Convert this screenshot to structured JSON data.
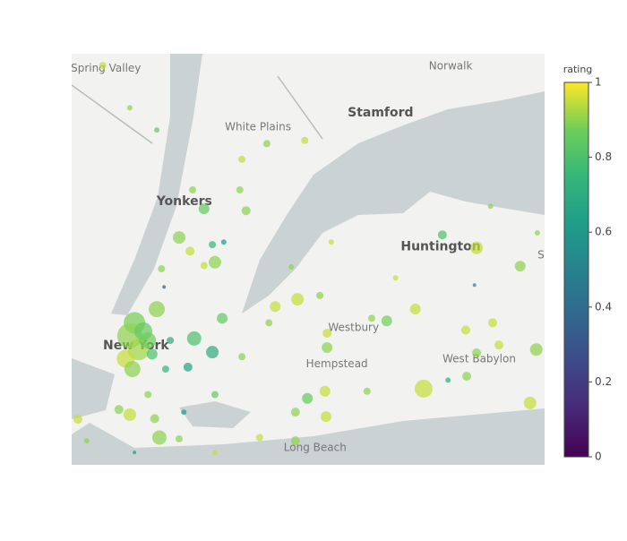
{
  "chart_data": {
    "type": "scatter_map",
    "lonlim": [
      -74.12,
      -73.209
    ],
    "latlim": [
      40.526,
      41.157
    ],
    "colorscale": "Viridis",
    "clim": [
      0,
      1
    ],
    "colorbar_title": "rating",
    "cticks": [
      0,
      0.2,
      0.4,
      0.6,
      0.8,
      1
    ],
    "opacity": 0.7,
    "map_labels": [
      {
        "text": "Spring Valley",
        "lon": -74.054,
        "lat": 41.134,
        "weight": "normal"
      },
      {
        "text": "Norwalk",
        "lon": -73.39,
        "lat": 41.138,
        "weight": "normal"
      },
      {
        "text": "White Plains",
        "lon": -73.761,
        "lat": 41.044,
        "weight": "normal"
      },
      {
        "text": "Stamford",
        "lon": -73.525,
        "lat": 41.066,
        "weight": "bold"
      },
      {
        "text": "Yonkers",
        "lon": -73.903,
        "lat": 40.93,
        "weight": "bold"
      },
      {
        "text": "Huntington",
        "lon": -73.409,
        "lat": 40.861,
        "weight": "bold"
      },
      {
        "text": "Westbury",
        "lon": -73.577,
        "lat": 40.736,
        "weight": "normal"
      },
      {
        "text": "New York",
        "lon": -73.996,
        "lat": 40.709,
        "weight": "bold"
      },
      {
        "text": "Hempstead",
        "lon": -73.609,
        "lat": 40.681,
        "weight": "normal"
      },
      {
        "text": "West Babylon",
        "lon": -73.335,
        "lat": 40.688,
        "weight": "normal"
      },
      {
        "text": "Long Beach",
        "lon": -73.651,
        "lat": 40.552,
        "weight": "normal"
      },
      {
        "text": "S",
        "lon": -73.216,
        "lat": 40.848,
        "weight": "normal"
      }
    ],
    "lon": [
      -74.06,
      -74.008,
      -73.956,
      -73.792,
      -73.744,
      -73.671,
      -73.796,
      -73.887,
      -73.865,
      -73.784,
      -73.913,
      -73.892,
      -73.849,
      -73.827,
      -73.844,
      -73.865,
      -73.947,
      -73.942,
      -73.956,
      -73.999,
      -74.008,
      -73.991,
      -74.016,
      -73.982,
      -73.973,
      -74.003,
      -73.965,
      -73.93,
      -73.884,
      -73.849,
      -73.83,
      -73.896,
      -73.939,
      -73.973,
      -74.008,
      -74.029,
      -73.96,
      -73.951,
      -73.999,
      -74.108,
      -74.091,
      -73.904,
      -73.844,
      -73.792,
      -73.74,
      -73.728,
      -73.685,
      -73.642,
      -73.628,
      -73.628,
      -73.666,
      -73.689,
      -73.63,
      -73.632,
      -73.551,
      -73.513,
      -73.458,
      -73.442,
      -73.406,
      -73.34,
      -73.256,
      -73.309,
      -73.361,
      -73.34,
      -73.297,
      -73.225,
      -73.359,
      -73.395,
      -73.237,
      -73.758,
      -73.689,
      -73.913,
      -73.844,
      -73.697,
      -73.496,
      -73.313,
      -73.223,
      -73.542,
      -73.62,
      -73.344
    ],
    "lat": [
      41.139,
      41.074,
      41.04,
      40.995,
      41.019,
      41.024,
      40.948,
      40.948,
      40.919,
      40.916,
      40.875,
      40.854,
      40.864,
      40.868,
      40.837,
      40.832,
      40.827,
      40.799,
      40.765,
      40.744,
      40.724,
      40.703,
      40.689,
      40.731,
      40.717,
      40.673,
      40.696,
      40.717,
      40.72,
      40.699,
      40.751,
      40.676,
      40.673,
      40.634,
      40.603,
      40.611,
      40.597,
      40.568,
      40.545,
      40.596,
      40.563,
      40.607,
      40.634,
      40.692,
      40.744,
      40.769,
      40.78,
      40.786,
      40.728,
      40.706,
      40.628,
      40.607,
      40.6,
      40.639,
      40.639,
      40.747,
      40.765,
      40.643,
      40.879,
      40.859,
      40.831,
      40.744,
      40.733,
      40.698,
      40.71,
      40.703,
      40.662,
      40.656,
      40.621,
      40.568,
      40.563,
      40.566,
      40.545,
      40.83,
      40.813,
      40.923,
      40.882,
      40.751,
      40.868,
      40.802
    ],
    "values": [
      0.95,
      0.9,
      0.85,
      0.95,
      0.9,
      0.95,
      0.9,
      0.9,
      0.85,
      0.9,
      0.9,
      0.95,
      0.75,
      0.6,
      0.9,
      0.95,
      0.9,
      0.3,
      0.9,
      0.88,
      0.9,
      0.92,
      0.95,
      0.85,
      0.87,
      0.9,
      0.8,
      0.7,
      0.8,
      0.7,
      0.85,
      0.65,
      0.75,
      0.9,
      0.95,
      0.9,
      0.9,
      0.9,
      0.6,
      0.95,
      0.9,
      0.6,
      0.85,
      0.9,
      0.9,
      0.95,
      0.95,
      0.9,
      0.95,
      0.9,
      0.85,
      0.9,
      0.95,
      0.95,
      0.9,
      0.88,
      0.95,
      0.95,
      0.8,
      0.95,
      0.9,
      0.95,
      0.95,
      0.9,
      0.95,
      0.9,
      0.9,
      0.7,
      0.95,
      0.95,
      0.9,
      0.9,
      0.95,
      0.9,
      0.95,
      0.9,
      0.9,
      0.9,
      0.95,
      0.5
    ],
    "sizes": [
      4,
      3,
      3,
      4,
      4,
      4,
      4,
      4,
      6,
      5,
      7,
      5,
      4,
      3,
      7,
      4,
      4,
      2,
      9,
      12,
      14,
      12,
      10,
      10,
      9,
      9,
      6,
      4,
      8,
      7,
      6,
      5,
      4,
      4,
      7,
      5,
      5,
      8,
      2,
      5,
      3,
      3,
      4,
      4,
      4,
      6,
      7,
      4,
      5,
      6,
      6,
      5,
      6,
      6,
      4,
      6,
      6,
      10,
      5,
      7,
      6,
      5,
      5,
      5,
      5,
      7,
      5,
      3,
      7,
      4,
      5,
      4,
      3,
      3,
      3,
      3,
      3,
      4,
      3,
      2
    ]
  }
}
